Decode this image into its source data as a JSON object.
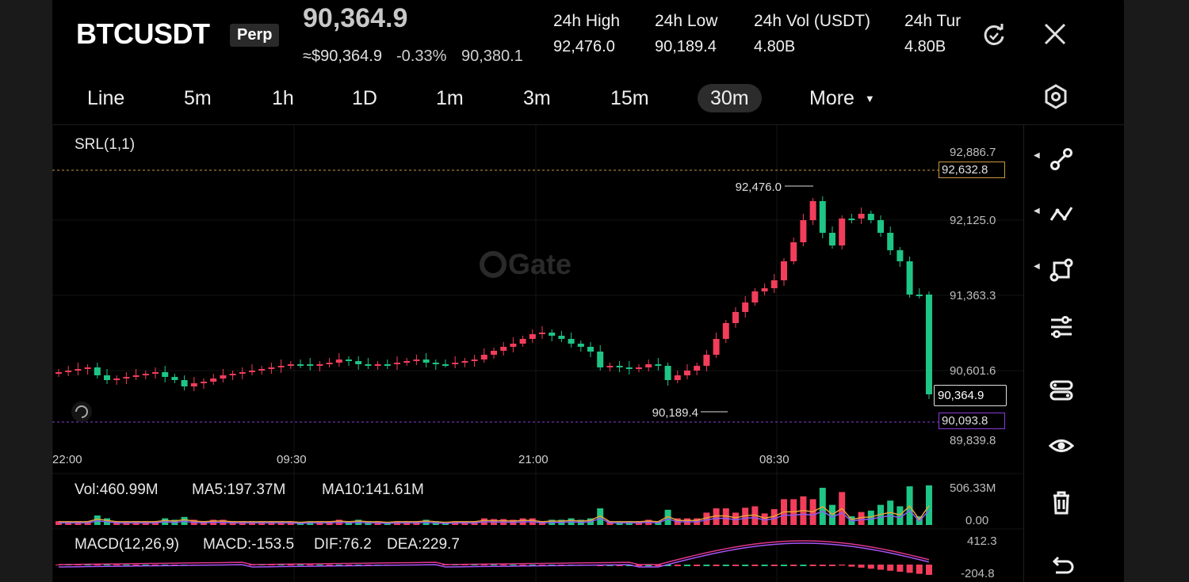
{
  "header": {
    "symbol": "BTCUSDT",
    "contract_type": "Perp",
    "last_price": "90,364.9",
    "usd_price": "≈$90,364.9",
    "change_pct": "-0.33%",
    "mark_price": "90,380.1",
    "stats": [
      {
        "label": "24h  High",
        "value": "92,476.0"
      },
      {
        "label": "24h  Low",
        "value": "90,189.4"
      },
      {
        "label": "24h  Vol (USDT)",
        "value": "4.80B"
      },
      {
        "label": "24h  Tur",
        "value": "4.80B"
      }
    ],
    "icons": {
      "refresh": "refresh-icon",
      "close": "close-icon"
    }
  },
  "timeframes": {
    "items": [
      "Line",
      "5m",
      "1h",
      "1D",
      "1m",
      "3m",
      "15m",
      "30m"
    ],
    "active": "30m",
    "more_label": "More"
  },
  "chart": {
    "indicator_label": "SRL(1,1)",
    "watermark": "Gate",
    "price_axis": [
      "92,886.7",
      "92,632.8",
      "92,125.0",
      "91,363.3",
      "90,601.6",
      "90,364.9",
      "90,093.8",
      "89,839.8"
    ],
    "highlighted_upper": "92,632.8",
    "highlighted_lower": "90,093.8",
    "current_price_tag": "90,364.9",
    "high_marker": "92,476.0",
    "low_marker": "90,189.4",
    "time_axis": [
      "22:00",
      "09:30",
      "21:00",
      "08:30"
    ],
    "colors": {
      "up": "#f23d5b",
      "down": "#1ec585",
      "upper_line": "#c89a3c",
      "lower_line": "#8a3ad8",
      "ma5": "#e8a33a",
      "ma10": "#8b5cf6",
      "macd_line": "#e0368c",
      "signal_line": "#a855f7"
    }
  },
  "volume": {
    "vol": "Vol:460.99M",
    "ma5": "MA5:197.37M",
    "ma10": "MA10:141.61M",
    "axis_top": "506.33M",
    "axis_bottom": "0.00"
  },
  "macd": {
    "label": "MACD(12,26,9)",
    "macd": "MACD:-153.5",
    "dif": "DIF:76.2",
    "dea": "DEA:229.7",
    "axis_top": "412.3",
    "axis_bottom": "-204.8"
  },
  "toolbar": {
    "tools": [
      "trend-line-icon",
      "polyline-icon",
      "shape-icon",
      "indicator-settings-icon",
      "template-icon",
      "visibility-eye-icon",
      "trash-icon",
      "undo-icon"
    ],
    "settings_icon": "settings-hexagon-icon"
  }
}
